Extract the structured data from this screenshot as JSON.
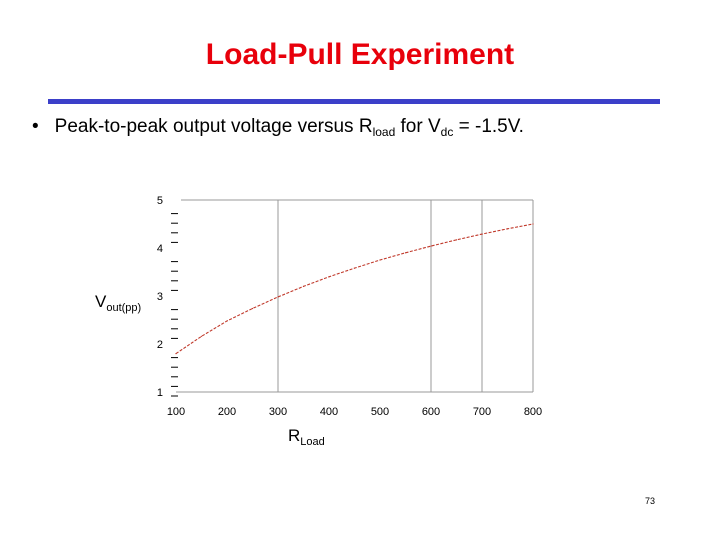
{
  "slide": {
    "title": "Load-Pull Experiment",
    "bullet": "•",
    "bullet_text_pre": "Peak-to-peak output voltage versus R",
    "bullet_sub_1": "load",
    "bullet_text_mid": " for V",
    "bullet_sub_2": "dc",
    "bullet_text_post": " = -1.5V.",
    "page_number": "73",
    "colors": {
      "title": "#e8000b",
      "rule": "#3b3fc9",
      "curve": "#c0392b",
      "grid": "#999999"
    }
  },
  "chart_data": {
    "type": "line",
    "title": "",
    "xlabel_main": "R",
    "xlabel_sub": "Load",
    "ylabel_main": "V",
    "ylabel_sub": "out(pp)",
    "xlim": [
      100,
      800
    ],
    "ylim": [
      1,
      5
    ],
    "x_ticks": [
      100,
      200,
      300,
      400,
      500,
      600,
      700,
      800
    ],
    "y_ticks": [
      1,
      2,
      3,
      4,
      5
    ],
    "x_tick_labels": [
      "100",
      "200",
      "300",
      "400",
      "500",
      "600",
      "700",
      "800"
    ],
    "y_tick_labels": [
      "1",
      "2",
      "3",
      "4",
      "5"
    ],
    "grid_x": [
      300,
      600,
      700
    ],
    "series": [
      {
        "x": [
          100,
          150,
          200,
          250,
          300,
          350,
          400,
          450,
          500,
          550,
          600,
          650,
          700,
          750,
          800
        ],
        "y": [
          1.8,
          2.16,
          2.48,
          2.74,
          2.98,
          3.2,
          3.4,
          3.58,
          3.75,
          3.9,
          4.04,
          4.17,
          4.29,
          4.4,
          4.5
        ]
      }
    ]
  }
}
